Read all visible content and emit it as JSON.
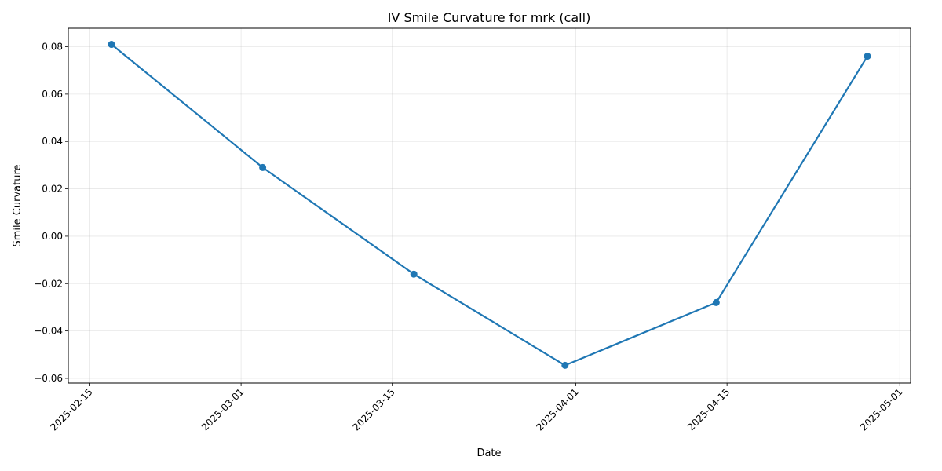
{
  "chart_data": {
    "type": "line",
    "title": "IV Smile Curvature for mrk (call)",
    "xlabel": "Date",
    "ylabel": "Smile Curvature",
    "grid": true,
    "legend": "none",
    "color": "#1f77b4",
    "x": [
      "2025-02-17",
      "2025-03-03",
      "2025-03-17",
      "2025-03-31",
      "2025-04-14",
      "2025-04-28"
    ],
    "series": [
      {
        "values": [
          0.081,
          0.029,
          -0.016,
          -0.0545,
          -0.028,
          0.076
        ]
      }
    ],
    "x_ticks": [
      "2025-02-15",
      "2025-03-01",
      "2025-03-15",
      "2025-04-01",
      "2025-04-15",
      "2025-05-01"
    ],
    "y_ticks": [
      "0.08",
      "0.06",
      "0.04",
      "0.02",
      "0.00",
      "−0.02",
      "−0.04",
      "−0.06"
    ],
    "xlim": [
      "2025-02-13",
      "2025-05-02"
    ],
    "ylim": [
      -0.062,
      0.0878
    ]
  }
}
